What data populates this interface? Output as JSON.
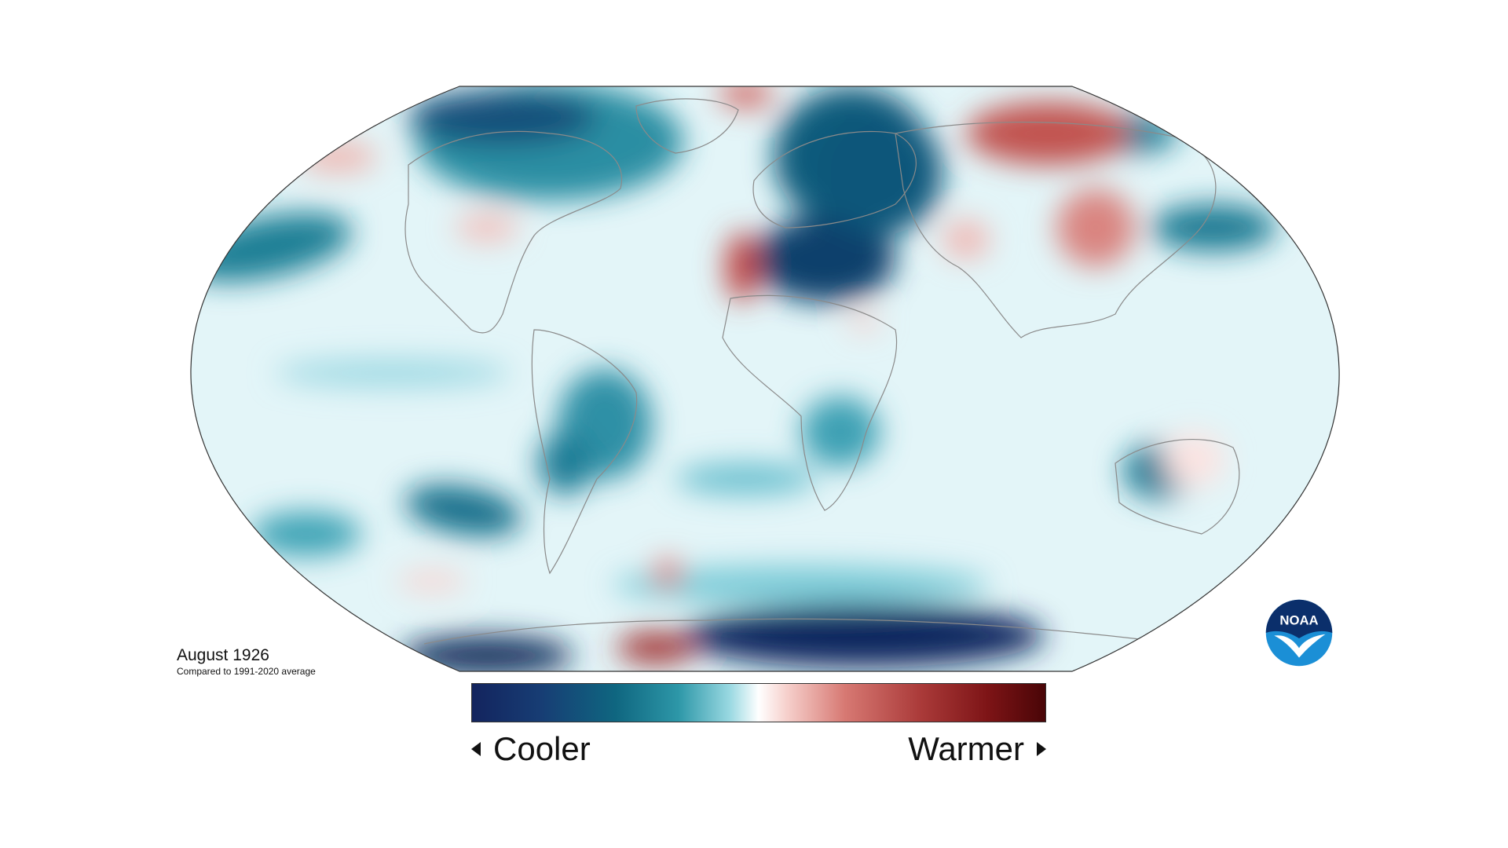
{
  "map": {
    "projection": "Robinson",
    "variable": "temperature anomaly",
    "colors": {
      "cool_extreme": "#13245e",
      "cool": "#0f6680",
      "neutral": "#ffffff",
      "warm": "#d77973",
      "warm_extreme": "#490507",
      "border": "#333333",
      "coastline": "#8a8a8a"
    }
  },
  "caption": {
    "date": "August 1926",
    "subtitle": "Compared to 1991-2020 average"
  },
  "legend": {
    "left_label": "Cooler",
    "right_label": "Warmer",
    "left_arrow_icon": "triangle-left-icon",
    "right_arrow_icon": "triangle-right-icon"
  },
  "logo": {
    "text": "NOAA",
    "icon": "noaa-logo-icon",
    "colors": {
      "top": "#0b2f6b",
      "bottom": "#1b8fd6",
      "bird": "#ffffff"
    }
  }
}
